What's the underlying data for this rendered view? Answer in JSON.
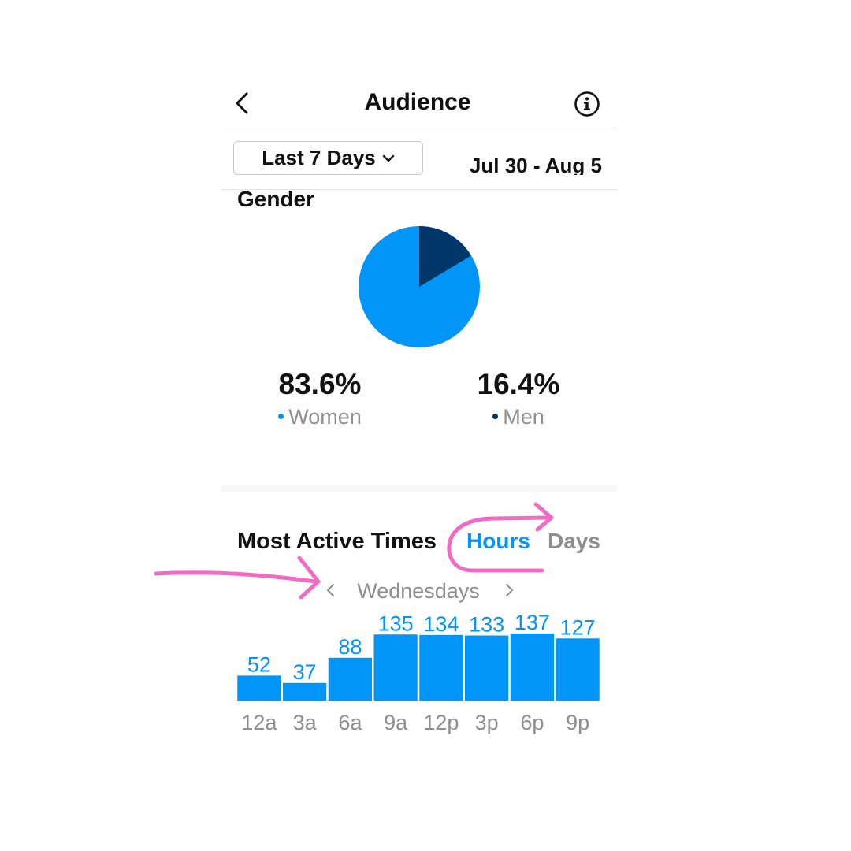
{
  "header": {
    "title": "Audience",
    "back_icon": "chevron-left-icon",
    "info_icon": "info-circle-icon"
  },
  "filter": {
    "range_label": "Last 7 Days",
    "range_chevron_icon": "chevron-down-icon",
    "date_range": "Jul 30 - Aug 5"
  },
  "gender": {
    "title": "Gender",
    "women": {
      "value": "83.6%",
      "label": "Women",
      "color": "#0095f6"
    },
    "men": {
      "value": "16.4%",
      "label": "Men",
      "color": "#00376b"
    }
  },
  "active_times": {
    "title": "Most Active Times",
    "tabs": [
      {
        "label": "Hours",
        "active": true,
        "color": "#0095f6"
      },
      {
        "label": "Days",
        "active": false,
        "color": "#8e8e8e"
      }
    ],
    "day_label": "Wednesdays",
    "prev_icon": "chevron-left-icon",
    "next_icon": "chevron-right-icon"
  },
  "chart_data": {
    "type": "bar",
    "categories": [
      "12a",
      "3a",
      "6a",
      "9a",
      "12p",
      "3p",
      "6p",
      "9p"
    ],
    "values": [
      52,
      37,
      88,
      135,
      134,
      133,
      137,
      127
    ],
    "ylim": [
      0,
      137
    ],
    "bar_color": "#0095f6",
    "grid": false
  },
  "annotations": {
    "color": "#f06cc4"
  }
}
